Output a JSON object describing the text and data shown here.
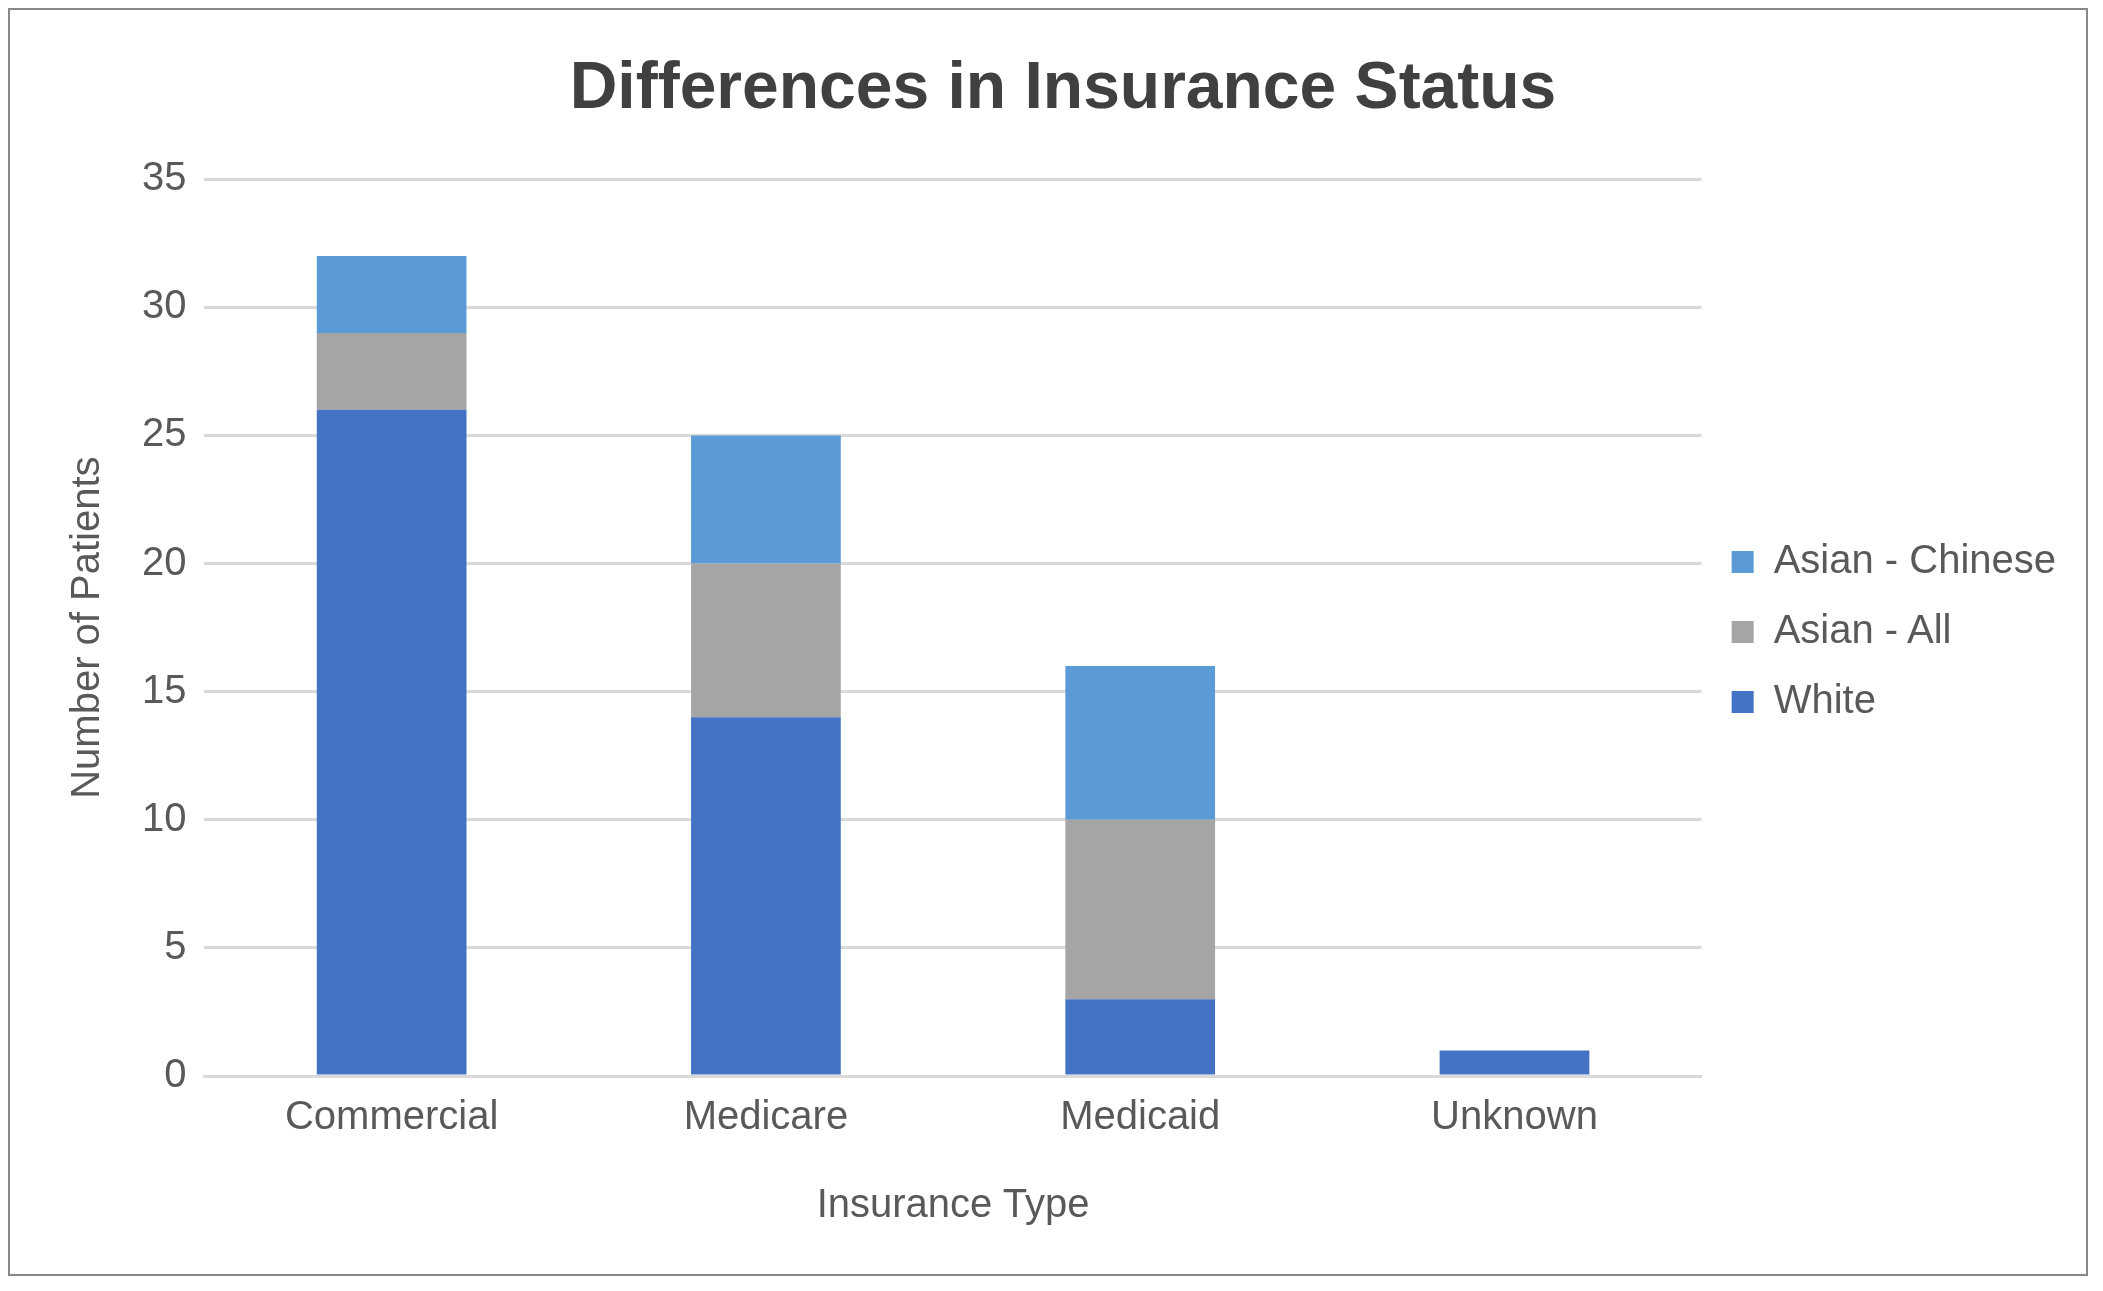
{
  "chart_data": {
    "type": "bar",
    "title": "Differences in Insurance Status",
    "xlabel": "Insurance Type",
    "ylabel": "Number of Patients",
    "categories": [
      "Commercial",
      "Medicare",
      "Medicaid",
      "Unknown"
    ],
    "series": [
      {
        "name": "White",
        "color": "#4472c4",
        "values": [
          26,
          14,
          3,
          1
        ]
      },
      {
        "name": "Asian - All",
        "color": "#a5a5a5",
        "values": [
          3,
          6,
          7,
          0
        ]
      },
      {
        "name": "Asian - Chinese",
        "color": "#5b9bd5",
        "values": [
          3,
          5,
          6,
          0
        ]
      }
    ],
    "stacked": true,
    "ylim": [
      0,
      35
    ],
    "yticks": [
      0,
      5,
      10,
      15,
      20,
      25,
      30,
      35
    ],
    "grid": "y",
    "legend": "right"
  }
}
